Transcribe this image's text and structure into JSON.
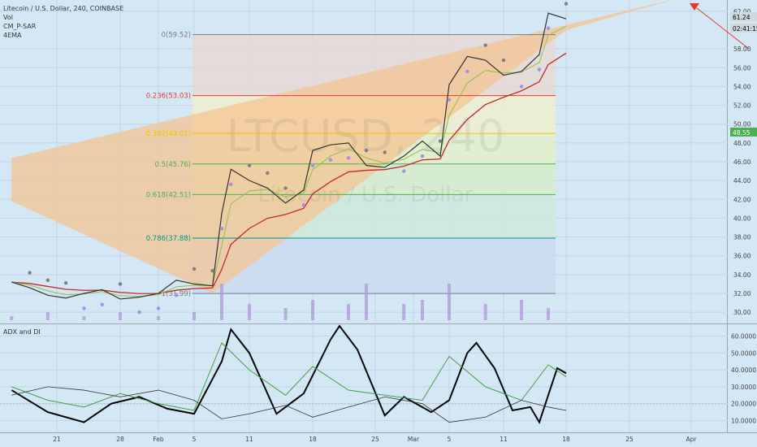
{
  "chart_data": [
    {
      "type": "line",
      "symbol_header": "Litecoin / U.S. Dollar, 240, COINBASE",
      "indicators": [
        "Vol",
        "CM_P-SAR",
        "4EMA"
      ],
      "watermark": {
        "line1": "LTCUSD, 240",
        "line2": "Litecoin / U.S. Dollar"
      },
      "y_axis": {
        "ticks": [
          "30.00",
          "32.00",
          "34.00",
          "36.00",
          "38.00",
          "40.00",
          "42.00",
          "44.00",
          "46.00",
          "48.00",
          "50.00",
          "52.00",
          "54.00",
          "56.00",
          "58.00",
          "62.00"
        ],
        "ylim": [
          28.8,
          63.2
        ]
      },
      "x_axis": {
        "ticks": [
          "21",
          "28",
          "Feb",
          "5",
          "11",
          "18",
          "25",
          "Mar",
          "5",
          "11",
          "18",
          "25",
          "Apr"
        ]
      },
      "price_tags": [
        {
          "text": "61.24",
          "role": "last"
        },
        {
          "text": "02:41:15",
          "role": "countdown"
        },
        {
          "text": "48.55",
          "role": "green"
        }
      ],
      "fibonacci": [
        {
          "label": "0(59.52)",
          "value": 59.52,
          "color": "#787b86"
        },
        {
          "label": "0.236(53.03)",
          "value": 53.03,
          "color": "#e53935"
        },
        {
          "label": "0.382(49.01)",
          "value": 49.01,
          "color": "#f0c000"
        },
        {
          "label": "0.5(45.76)",
          "value": 45.76,
          "color": "#4caf50"
        },
        {
          "label": "0.618(42.51)",
          "value": 42.51,
          "color": "#4caf50"
        },
        {
          "label": "0.786(37.88)",
          "value": 37.88,
          "color": "#009688"
        },
        {
          "label": "1(31.99)",
          "value": 31.99,
          "color": "#787b86"
        }
      ],
      "price_series": [
        {
          "date": "Jan 16",
          "value": 33.2
        },
        {
          "date": "Jan 18",
          "value": 32.6
        },
        {
          "date": "Jan 20",
          "value": 31.8
        },
        {
          "date": "Jan 22",
          "value": 31.5
        },
        {
          "date": "Jan 24",
          "value": 32.0
        },
        {
          "date": "Jan 26",
          "value": 32.4
        },
        {
          "date": "Jan 28",
          "value": 31.4
        },
        {
          "date": "Jan 30",
          "value": 31.6
        },
        {
          "date": "Feb 1",
          "value": 32.0
        },
        {
          "date": "Feb 3",
          "value": 33.4
        },
        {
          "date": "Feb 5",
          "value": 33.0
        },
        {
          "date": "Feb 7",
          "value": 32.8
        },
        {
          "date": "Feb 8",
          "value": 40.5
        },
        {
          "date": "Feb 9",
          "value": 45.2
        },
        {
          "date": "Feb 11",
          "value": 44.0
        },
        {
          "date": "Feb 13",
          "value": 43.2
        },
        {
          "date": "Feb 15",
          "value": 41.6
        },
        {
          "date": "Feb 17",
          "value": 43.0
        },
        {
          "date": "Feb 18",
          "value": 47.2
        },
        {
          "date": "Feb 20",
          "value": 47.8
        },
        {
          "date": "Feb 22",
          "value": 48.0
        },
        {
          "date": "Feb 24",
          "value": 45.6
        },
        {
          "date": "Feb 26",
          "value": 45.4
        },
        {
          "date": "Feb 28",
          "value": 46.6
        },
        {
          "date": "Mar 2",
          "value": 48.2
        },
        {
          "date": "Mar 4",
          "value": 46.6
        },
        {
          "date": "Mar 5",
          "value": 54.2
        },
        {
          "date": "Mar 7",
          "value": 57.2
        },
        {
          "date": "Mar 9",
          "value": 56.8
        },
        {
          "date": "Mar 11",
          "value": 55.2
        },
        {
          "date": "Mar 13",
          "value": 55.6
        },
        {
          "date": "Mar 15",
          "value": 57.4
        },
        {
          "date": "Mar 16",
          "value": 61.8
        },
        {
          "date": "Mar 18",
          "value": 61.2
        }
      ],
      "volume_series": [
        {
          "date": "Jan 16",
          "value": 1
        },
        {
          "date": "Jan 20",
          "value": 2
        },
        {
          "date": "Jan 24",
          "value": 1
        },
        {
          "date": "Jan 28",
          "value": 2
        },
        {
          "date": "Feb 1",
          "value": 1
        },
        {
          "date": "Feb 5",
          "value": 2
        },
        {
          "date": "Feb 8",
          "value": 9
        },
        {
          "date": "Feb 11",
          "value": 4
        },
        {
          "date": "Feb 15",
          "value": 3
        },
        {
          "date": "Feb 18",
          "value": 5
        },
        {
          "date": "Feb 22",
          "value": 4
        },
        {
          "date": "Feb 24",
          "value": 9
        },
        {
          "date": "Feb 28",
          "value": 4
        },
        {
          "date": "Mar 2",
          "value": 5
        },
        {
          "date": "Mar 5",
          "value": 9
        },
        {
          "date": "Mar 9",
          "value": 4
        },
        {
          "date": "Mar 13",
          "value": 5
        },
        {
          "date": "Mar 16",
          "value": 3
        }
      ],
      "wedge_upper": [
        {
          "date": "Jan 16",
          "value": 46.4
        },
        {
          "date": "Mar 31",
          "value": 63.5
        }
      ],
      "wedge_lower": [
        {
          "date": "Jan 16",
          "value": 41.8
        },
        {
          "date": "Feb 7",
          "value": 32.0
        },
        {
          "date": "Mar 18",
          "value": 60.0
        }
      ]
    },
    {
      "type": "line",
      "title": "ADX and DI",
      "y_axis": {
        "ticks": [
          "10.0000",
          "20.0000",
          "30.0000",
          "40.0000",
          "50.0000",
          "60.0000"
        ],
        "ylim": [
          3,
          67
        ]
      },
      "reference_line": 20,
      "series": [
        {
          "color": "#000000",
          "values": [
            {
              "date": "Jan 16",
              "value": 28
            },
            {
              "date": "Jan 20",
              "value": 15
            },
            {
              "date": "Jan 24",
              "value": 9
            },
            {
              "date": "Jan 27",
              "value": 20
            },
            {
              "date": "Jan 30",
              "value": 24
            },
            {
              "date": "Feb 2",
              "value": 17
            },
            {
              "date": "Feb 5",
              "value": 14
            },
            {
              "date": "Feb 8",
              "value": 45
            },
            {
              "date": "Feb 9",
              "value": 64
            },
            {
              "date": "Feb 11",
              "value": 50
            },
            {
              "date": "Feb 14",
              "value": 14
            },
            {
              "date": "Feb 17",
              "value": 26
            },
            {
              "date": "Feb 20",
              "value": 58
            },
            {
              "date": "Feb 21",
              "value": 66
            },
            {
              "date": "Feb 23",
              "value": 52
            },
            {
              "date": "Feb 26",
              "value": 13
            },
            {
              "date": "Feb 28",
              "value": 24
            },
            {
              "date": "Mar 3",
              "value": 15
            },
            {
              "date": "Mar 5",
              "value": 22
            },
            {
              "date": "Mar 7",
              "value": 50
            },
            {
              "date": "Mar 8",
              "value": 56
            },
            {
              "date": "Mar 10",
              "value": 41
            },
            {
              "date": "Mar 12",
              "value": 16
            },
            {
              "date": "Mar 14",
              "value": 18
            },
            {
              "date": "Mar 15",
              "value": 9
            },
            {
              "date": "Mar 17",
              "value": 41
            },
            {
              "date": "Mar 18",
              "value": 38
            }
          ]
        },
        {
          "color": "#43a047",
          "values": [
            {
              "date": "Jan 16",
              "value": 30
            },
            {
              "date": "Jan 20",
              "value": 22
            },
            {
              "date": "Jan 24",
              "value": 18
            },
            {
              "date": "Jan 28",
              "value": 26
            },
            {
              "date": "Feb 1",
              "value": 20
            },
            {
              "date": "Feb 5",
              "value": 16
            },
            {
              "date": "Feb 8",
              "value": 56
            },
            {
              "date": "Feb 11",
              "value": 40
            },
            {
              "date": "Feb 15",
              "value": 25
            },
            {
              "date": "Feb 18",
              "value": 42
            },
            {
              "date": "Feb 22",
              "value": 28
            },
            {
              "date": "Feb 26",
              "value": 25
            },
            {
              "date": "Mar 2",
              "value": 22
            },
            {
              "date": "Mar 5",
              "value": 48
            },
            {
              "date": "Mar 9",
              "value": 30
            },
            {
              "date": "Mar 13",
              "value": 22
            },
            {
              "date": "Mar 16",
              "value": 43
            },
            {
              "date": "Mar 18",
              "value": 36
            }
          ]
        },
        {
          "color": "#333333",
          "values": [
            {
              "date": "Jan 16",
              "value": 25
            },
            {
              "date": "Jan 20",
              "value": 30
            },
            {
              "date": "Jan 24",
              "value": 28
            },
            {
              "date": "Jan 28",
              "value": 24
            },
            {
              "date": "Feb 1",
              "value": 28
            },
            {
              "date": "Feb 5",
              "value": 22
            },
            {
              "date": "Feb 8",
              "value": 11
            },
            {
              "date": "Feb 11",
              "value": 14
            },
            {
              "date": "Feb 15",
              "value": 19
            },
            {
              "date": "Feb 18",
              "value": 12
            },
            {
              "date": "Feb 22",
              "value": 18
            },
            {
              "date": "Feb 26",
              "value": 24
            },
            {
              "date": "Mar 2",
              "value": 20
            },
            {
              "date": "Mar 5",
              "value": 9
            },
            {
              "date": "Mar 9",
              "value": 12
            },
            {
              "date": "Mar 13",
              "value": 22
            },
            {
              "date": "Mar 16",
              "value": 18
            },
            {
              "date": "Mar 18",
              "value": 16
            }
          ]
        }
      ]
    }
  ],
  "colors": {
    "background": "#d4e7f5",
    "wedge_fill": "#f5c38f",
    "price_line": "#333333",
    "psar_dots": "#7f7f7f",
    "psar_dots_bull": "#a98ee6",
    "ema_red": "#c62828",
    "volume_bar": "#b39ddb",
    "green_tag": "#4caf50"
  }
}
